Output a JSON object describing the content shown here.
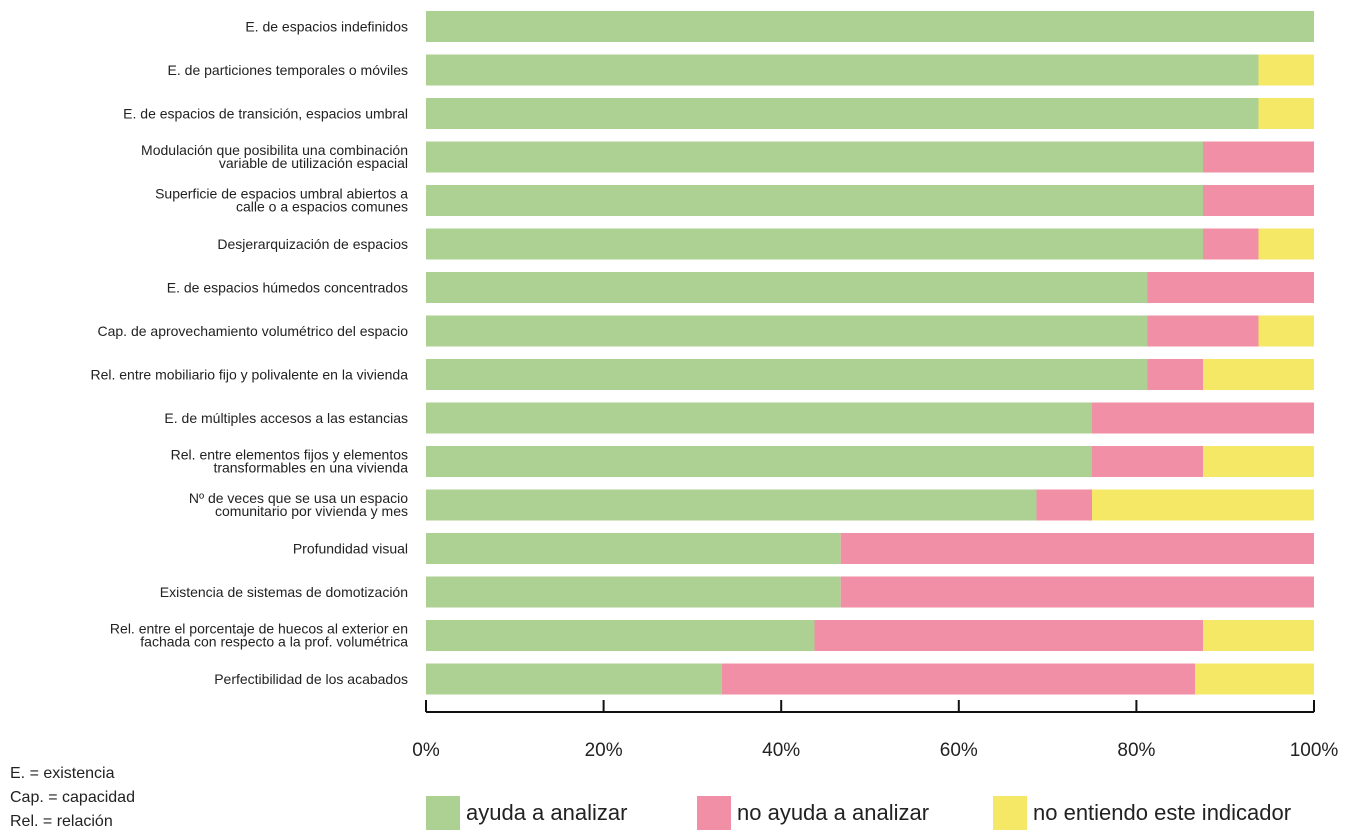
{
  "chart_data": {
    "type": "bar",
    "orientation": "horizontal",
    "stacked": "percent",
    "xlim": [
      0,
      100
    ],
    "x_ticks": [
      "0%",
      "20%",
      "40%",
      "60%",
      "80%",
      "100%"
    ],
    "grid": false,
    "legend_position": "bottom",
    "categories": [
      [
        "E. de espacios indefinidos"
      ],
      [
        "E. de particiones temporales o móviles"
      ],
      [
        "E. de espacios de transición, espacios umbral"
      ],
      [
        "Modulación que posibilita una combinación",
        "variable de utilización espacial"
      ],
      [
        "Superficie de espacios umbral abiertos a",
        "calle o a espacios comunes"
      ],
      [
        "Desjerarquización de espacios"
      ],
      [
        "E. de espacios húmedos concentrados"
      ],
      [
        "Cap. de aprovechamiento volumétrico del espacio"
      ],
      [
        "Rel. entre mobiliario fijo y polivalente en la vivienda"
      ],
      [
        "E. de múltiples accesos a las estancias"
      ],
      [
        "Rel. entre elementos fijos y elementos",
        "transformables en una vivienda"
      ],
      [
        "Nº de veces que se usa un espacio",
        "comunitario por vivienda y mes"
      ],
      [
        "Profundidad visual"
      ],
      [
        "Existencia de sistemas de domotización"
      ],
      [
        "Rel. entre el porcentaje de huecos al exterior en",
        "fachada con respecto a la prof. volumétrica"
      ],
      [
        "Perfectibilidad de los acabados"
      ]
    ],
    "series": [
      {
        "name": "ayuda a analizar",
        "color": "#add193",
        "values": [
          100,
          93.75,
          93.75,
          87.5,
          87.5,
          87.5,
          81.25,
          81.25,
          81.25,
          75,
          75,
          68.75,
          46.7,
          46.7,
          43.75,
          33.3
        ]
      },
      {
        "name": "no ayuda a analizar",
        "color": "#f08fa5",
        "values": [
          0,
          0,
          0,
          12.5,
          12.5,
          6.25,
          18.75,
          12.5,
          6.25,
          25,
          12.5,
          6.25,
          53.3,
          53.3,
          43.75,
          53.3
        ]
      },
      {
        "name": "no entiendo este indicador",
        "color": "#f6e867",
        "values": [
          0,
          6.25,
          6.25,
          0,
          0,
          6.25,
          0,
          6.25,
          12.5,
          0,
          12.5,
          25,
          0,
          0,
          12.5,
          13.4
        ]
      }
    ]
  },
  "notes": [
    "E. = existencia",
    "Cap. = capacidad",
    "Rel. = relación"
  ]
}
